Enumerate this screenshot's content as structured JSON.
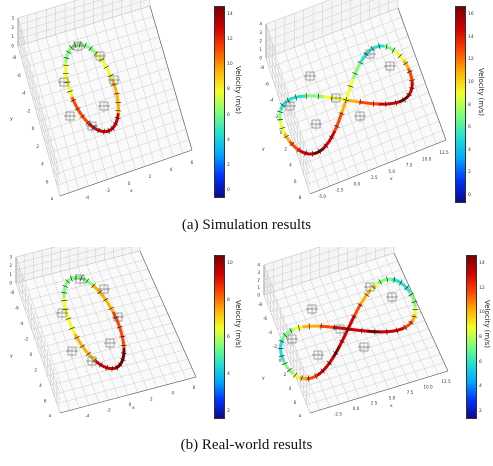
{
  "captions": {
    "sim": "(a) Simulation results",
    "real": "(b) Real-world results"
  },
  "colorbar_label": "Velocity (m/s)",
  "colormap": [
    "#0a0a8a",
    "#0033ff",
    "#00a6ff",
    "#22e0d0",
    "#7cff7a",
    "#f4ff2a",
    "#ffb000",
    "#ff4500",
    "#d00000",
    "#7a0000"
  ],
  "colorbars": {
    "sim_ring": [
      "14",
      "12",
      "10",
      "8",
      "6",
      "4",
      "2",
      "0"
    ],
    "sim_figure8": [
      "16",
      "14",
      "12",
      "10",
      "8",
      "6",
      "4",
      "2",
      "0"
    ],
    "real_ring": [
      "10",
      "8",
      "6",
      "4",
      "2"
    ],
    "real_figure8": [
      "14",
      "12",
      "10",
      "8",
      "6",
      "4",
      "2"
    ]
  },
  "axes": {
    "x_label": "x",
    "y_label": "y",
    "ring_x_ticks": [
      "-6",
      "-4",
      "-2",
      "0",
      "2",
      "4",
      "6"
    ],
    "ring_y_ticks": [
      "-8",
      "-6",
      "-4",
      "-2",
      "0",
      "2",
      "4",
      "6",
      "8"
    ],
    "ring_z_ticks": [
      "3",
      "2",
      "1",
      "0"
    ],
    "fig8_x_ticks": [
      "-5.0",
      "-2.5",
      "0.0",
      "2.5",
      "5.0",
      "7.5",
      "10.0",
      "12.5"
    ],
    "fig8_y_ticks": [
      "-8",
      "-6",
      "-4",
      "-2",
      "0",
      "2",
      "4",
      "6",
      "8"
    ],
    "fig8_z_ticks": [
      "4",
      "3",
      "2",
      "1",
      "0"
    ]
  }
}
